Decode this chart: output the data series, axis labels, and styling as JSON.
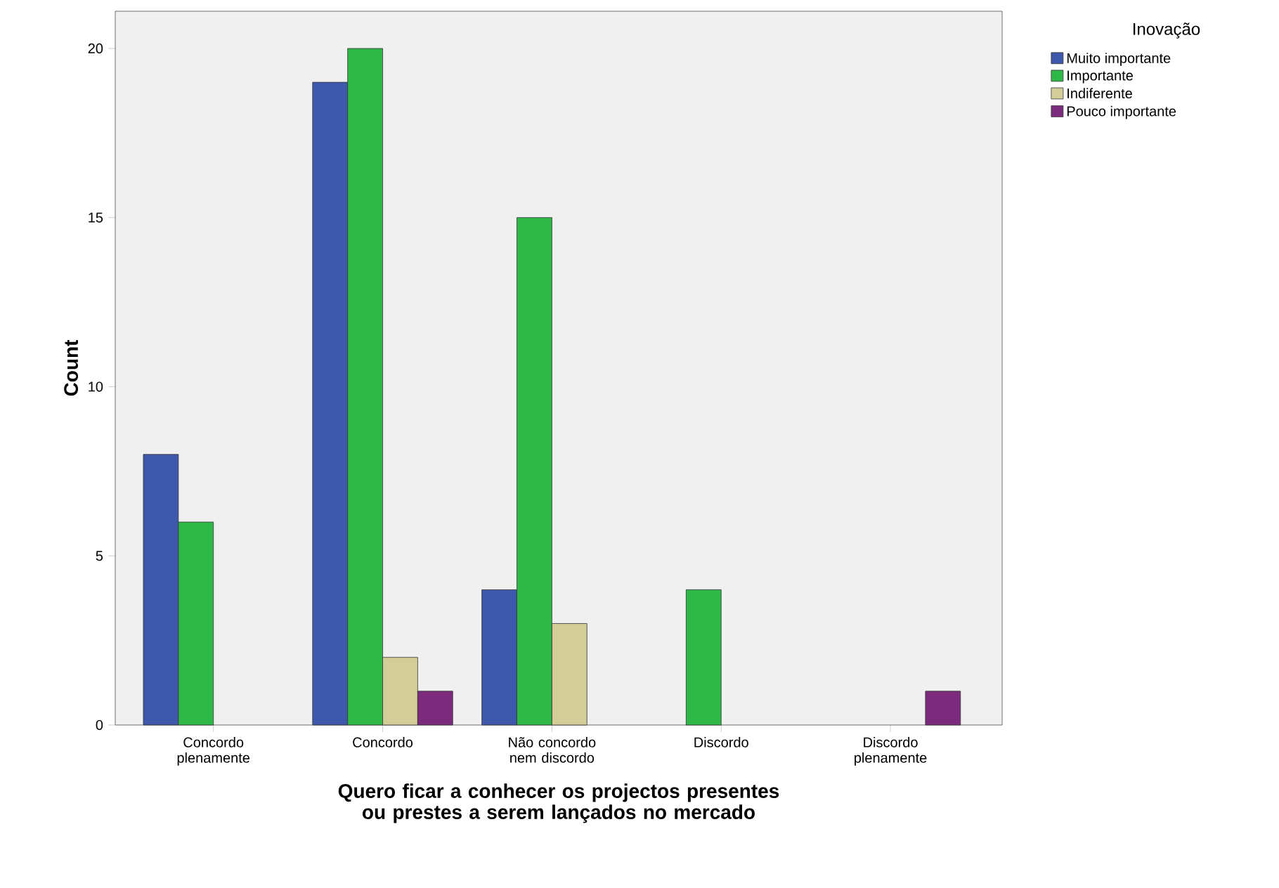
{
  "chart_data": {
    "type": "bar",
    "xlabel": "Quero ficar a conhecer os projectos presentes ou prestes a serem lançados no mercado",
    "ylabel": "Count",
    "legend_title": "Inovação",
    "legend": "right",
    "grid": false,
    "categories": [
      "Concordo plenamente",
      "Concordo",
      "Não concordo nem discordo",
      "Discordo",
      "Discordo plenamente"
    ],
    "series": [
      {
        "name": "Muito importante",
        "color": "#3e58ac",
        "values": [
          8,
          19,
          4,
          null,
          null
        ]
      },
      {
        "name": "Importante",
        "color": "#2eb848",
        "values": [
          6,
          20,
          15,
          4,
          null
        ]
      },
      {
        "name": "Indiferente",
        "color": "#d3ce97",
        "values": [
          null,
          2,
          3,
          null,
          null
        ]
      },
      {
        "name": "Pouco importante",
        "color": "#7b2a7d",
        "values": [
          null,
          1,
          null,
          null,
          1
        ]
      }
    ],
    "ylim": [
      0,
      21.1
    ],
    "yticks": [
      0,
      5,
      10,
      15,
      20
    ]
  }
}
